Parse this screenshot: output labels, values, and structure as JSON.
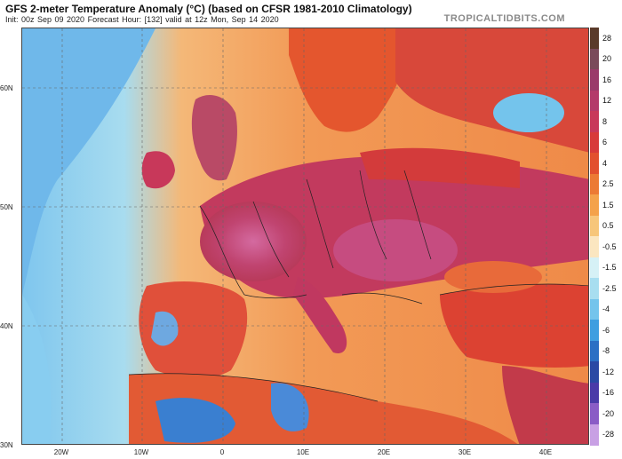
{
  "header": {
    "title": "GFS 2-meter Temperature Anomaly (°C) (based on CFSR 1981-2010 Climatology)",
    "subtitle": "Init: 00z Sep 09 2020   Forecast Hour: [132]   valid at 12z Mon, Sep 14 2020",
    "brand": "TROPICALTIDBITS.COM"
  },
  "map": {
    "lat_labels": [
      "60N",
      "50N",
      "40N",
      "30N"
    ],
    "lon_labels": [
      "20W",
      "10W",
      "0",
      "10E",
      "20E",
      "30E",
      "40E"
    ]
  },
  "colorbar": {
    "labels": [
      "28",
      "20",
      "16",
      "12",
      "8",
      "6",
      "4",
      "2.5",
      "1.5",
      "0.5",
      "-0.5",
      "-1.5",
      "-2.5",
      "-4",
      "-6",
      "-8",
      "-12",
      "-16",
      "-20",
      "-28"
    ],
    "colors": [
      "#5a3a2a",
      "#7a4a5a",
      "#9a3a6a",
      "#b43a6a",
      "#c8385a",
      "#d83a3a",
      "#e2502e",
      "#ec7a34",
      "#f4a24a",
      "#f7c67a",
      "#fbe6c0",
      "#d6f1f6",
      "#a8def0",
      "#74c4ec",
      "#3f9ee0",
      "#2b6fc4",
      "#2a49a4",
      "#4a3aa8",
      "#8a5cc6",
      "#c8a0e4"
    ]
  },
  "colors": {
    "ocean_warm": "#f0a060",
    "ocean_cold": "#8ed0f0",
    "land_hot": "#c04470",
    "land_warm": "#e04a30",
    "land_mild": "#f08a3a"
  }
}
